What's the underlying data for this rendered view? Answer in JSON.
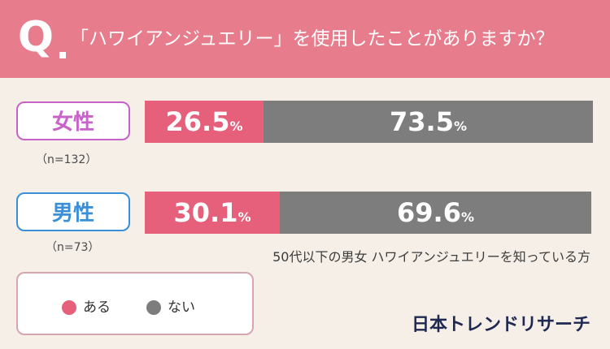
{
  "header": {
    "q_mark": "Q",
    "question": "「ハワイアンジュエリー」を使用したことがありますか？"
  },
  "chart_data": {
    "type": "bar",
    "stacked": true,
    "orientation": "horizontal",
    "categories": [
      "女性",
      "男性"
    ],
    "sample_sizes": [
      "（n=132）",
      "（n=73）"
    ],
    "series": [
      {
        "name": "ある",
        "values": [
          26.5,
          30.1
        ],
        "labels": [
          "26.5",
          "30.1"
        ],
        "color": "#e6607c"
      },
      {
        "name": "ない",
        "values": [
          73.5,
          69.6
        ],
        "labels": [
          "73.5",
          "69.6"
        ],
        "color": "#7d7d7d"
      }
    ],
    "unit": "%",
    "xlim": [
      0,
      100
    ]
  },
  "rows": [
    {
      "label": "女性",
      "n": "（n=132）",
      "color": "#c763c8",
      "yes": "26.5",
      "no": "73.5"
    },
    {
      "label": "男性",
      "n": "（n=73）",
      "color": "#3a8fd8",
      "yes": "30.1",
      "no": "69.6"
    }
  ],
  "note": "50代以下の男女 ハワイアンジュエリーを知っている方",
  "legend": {
    "yes_label": "ある",
    "no_label": "ない",
    "yes_color": "#e6607c",
    "no_color": "#7d7d7d"
  },
  "brand": "日本トレンドリサーチ"
}
